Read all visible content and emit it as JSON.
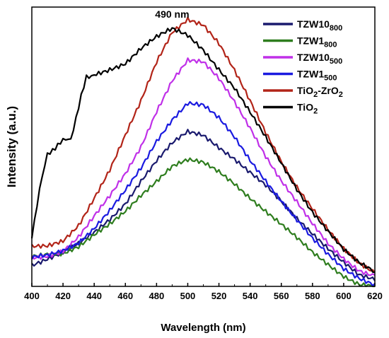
{
  "chart_data": {
    "type": "line",
    "title": "",
    "xlabel": "Wavelength (nm)",
    "ylabel": "Intensity (a.u.)",
    "xlim": [
      400,
      620
    ],
    "ylim": [
      0,
      1
    ],
    "xticks": [
      400,
      420,
      440,
      460,
      480,
      500,
      520,
      540,
      560,
      580,
      600,
      620
    ],
    "yticks_shown": false,
    "grid": false,
    "legend": "top-right",
    "annotations": [
      {
        "text": "490 nm",
        "x": 490,
        "y": 1.0
      }
    ],
    "series": [
      {
        "name": "TZW10800",
        "legend": {
          "base": "TZW10",
          "sub": "800"
        },
        "color": "#1a1a6e",
        "x": [
          400,
          410,
          420,
          430,
          440,
          450,
          460,
          470,
          480,
          490,
          500,
          510,
          520,
          530,
          540,
          550,
          560,
          570,
          580,
          590,
          600,
          610,
          620
        ],
        "y": [
          0.08,
          0.1,
          0.12,
          0.15,
          0.19,
          0.24,
          0.3,
          0.38,
          0.45,
          0.51,
          0.55,
          0.54,
          0.5,
          0.46,
          0.41,
          0.36,
          0.3,
          0.24,
          0.19,
          0.14,
          0.09,
          0.04,
          0.02
        ]
      },
      {
        "name": "TZW1800",
        "legend": {
          "base": "TZW1",
          "sub": "800"
        },
        "color": "#2e7d1e",
        "x": [
          400,
          410,
          420,
          430,
          440,
          450,
          460,
          470,
          480,
          490,
          500,
          510,
          520,
          530,
          540,
          550,
          560,
          570,
          580,
          590,
          600,
          610,
          620
        ],
        "y": [
          0.11,
          0.12,
          0.12,
          0.14,
          0.18,
          0.22,
          0.27,
          0.33,
          0.38,
          0.43,
          0.45,
          0.44,
          0.41,
          0.37,
          0.32,
          0.27,
          0.22,
          0.17,
          0.12,
          0.08,
          0.04,
          0.01,
          0.0
        ]
      },
      {
        "name": "TZW10500",
        "legend": {
          "base": "TZW10",
          "sub": "500"
        },
        "color": "#c030e8",
        "x": [
          400,
          410,
          420,
          430,
          440,
          450,
          460,
          470,
          480,
          490,
          500,
          510,
          520,
          530,
          540,
          550,
          560,
          570,
          580,
          590,
          600,
          610,
          620
        ],
        "y": [
          0.1,
          0.11,
          0.13,
          0.18,
          0.25,
          0.32,
          0.4,
          0.5,
          0.63,
          0.74,
          0.81,
          0.8,
          0.74,
          0.66,
          0.57,
          0.47,
          0.38,
          0.3,
          0.22,
          0.15,
          0.1,
          0.06,
          0.04
        ]
      },
      {
        "name": "TZW1500",
        "legend": {
          "base": "TZW1",
          "sub": "500"
        },
        "color": "#1a1ae0",
        "x": [
          400,
          410,
          420,
          430,
          440,
          450,
          460,
          470,
          480,
          490,
          500,
          510,
          520,
          530,
          540,
          550,
          560,
          570,
          580,
          590,
          600,
          610,
          620
        ],
        "y": [
          0.1,
          0.11,
          0.13,
          0.16,
          0.21,
          0.27,
          0.34,
          0.42,
          0.52,
          0.6,
          0.66,
          0.65,
          0.6,
          0.53,
          0.45,
          0.38,
          0.31,
          0.24,
          0.17,
          0.11,
          0.06,
          0.03,
          0.01
        ]
      },
      {
        "name": "TiO2-ZrO2",
        "legend": {
          "parts": [
            {
              "t": "TiO"
            },
            {
              "t": "2",
              "sub": true
            },
            {
              "t": "-ZrO"
            },
            {
              "t": "2",
              "sub": true
            }
          ]
        },
        "color": "#b22418",
        "x": [
          400,
          410,
          420,
          430,
          440,
          450,
          460,
          470,
          480,
          490,
          500,
          510,
          520,
          530,
          540,
          550,
          560,
          570,
          580,
          590,
          600,
          610,
          620
        ],
        "y": [
          0.14,
          0.14,
          0.16,
          0.22,
          0.32,
          0.42,
          0.54,
          0.66,
          0.8,
          0.91,
          0.96,
          0.94,
          0.87,
          0.77,
          0.66,
          0.55,
          0.45,
          0.36,
          0.28,
          0.2,
          0.13,
          0.08,
          0.05
        ]
      },
      {
        "name": "TiO2",
        "legend": {
          "parts": [
            {
              "t": "TiO"
            },
            {
              "t": "2",
              "sub": true
            }
          ]
        },
        "color": "#000000",
        "x": [
          400,
          405,
          410,
          415,
          420,
          425,
          430,
          435,
          440,
          450,
          460,
          470,
          480,
          490,
          500,
          510,
          520,
          530,
          540,
          550,
          560,
          570,
          580,
          590,
          600,
          610,
          620
        ],
        "y": [
          0.18,
          0.35,
          0.47,
          0.5,
          0.52,
          0.53,
          0.64,
          0.75,
          0.76,
          0.78,
          0.8,
          0.85,
          0.89,
          0.92,
          0.9,
          0.85,
          0.78,
          0.71,
          0.62,
          0.53,
          0.44,
          0.35,
          0.27,
          0.2,
          0.13,
          0.08,
          0.05
        ]
      }
    ]
  }
}
